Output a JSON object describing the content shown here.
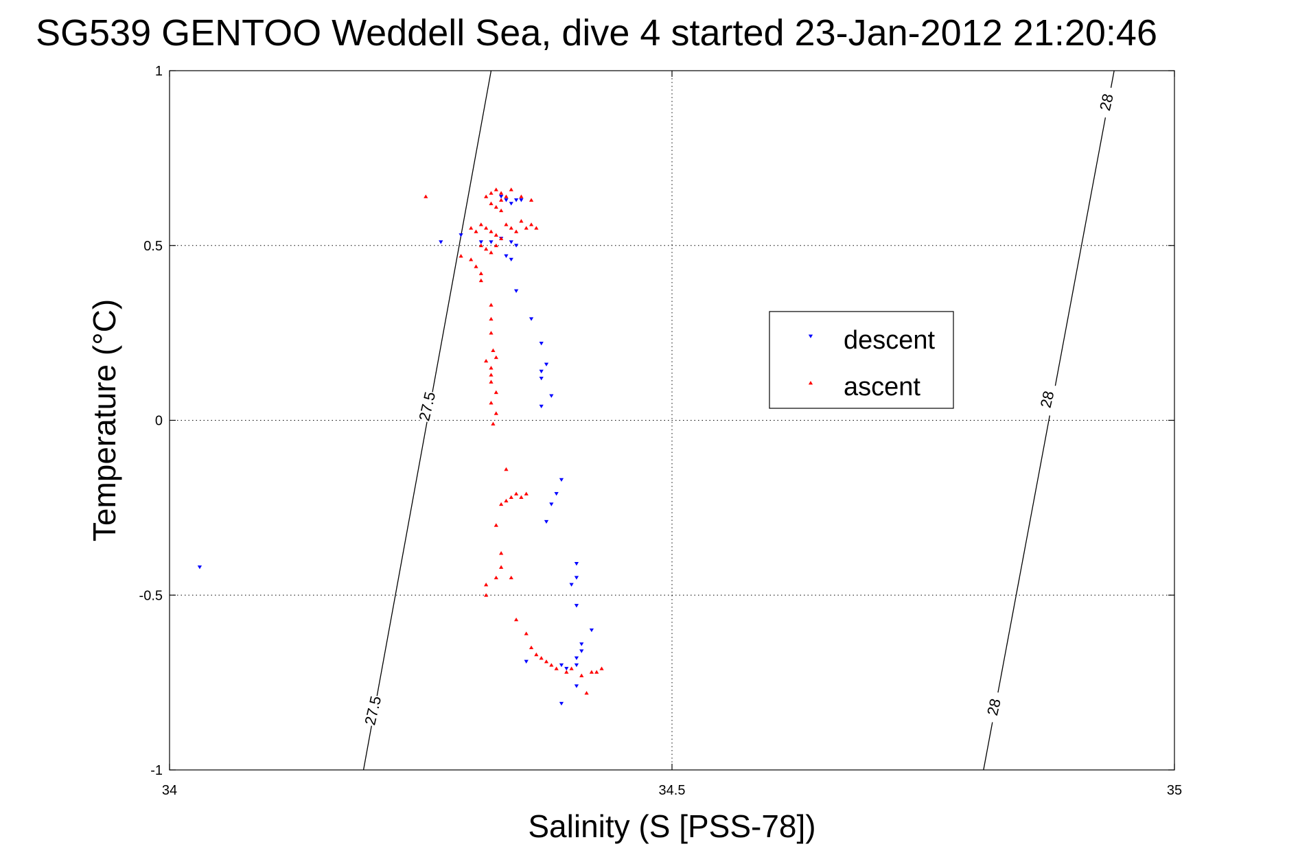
{
  "chart_data": {
    "type": "scatter",
    "title": "SG539 GENTOO Weddell Sea, dive 4 started 23-Jan-2012 21:20:46",
    "xlabel": "Salinity (S [PSS-78])",
    "ylabel": "Temperature (°C)",
    "xlim": [
      34,
      35
    ],
    "ylim": [
      -1,
      1
    ],
    "xticks": [
      34,
      34.5,
      35
    ],
    "yticks": [
      -1,
      -0.5,
      0,
      0.5,
      1
    ],
    "xtick_labels": [
      "34",
      "34.5",
      "35"
    ],
    "ytick_labels": [
      "-1",
      "-0.5",
      "0",
      "0.5",
      "1"
    ],
    "grid": true,
    "legend_position": "center-right",
    "isopycnals": [
      {
        "label": "27.5",
        "points": [
          [
            34.193,
            -1.0
          ],
          [
            34.32,
            1.0
          ]
        ]
      },
      {
        "label": "28",
        "points": [
          [
            34.81,
            -1.0
          ],
          [
            34.94,
            1.0
          ]
        ]
      }
    ],
    "contour_labels": [
      {
        "text": "27.5",
        "x": 34.202,
        "y": -0.83
      },
      {
        "text": "27.5",
        "x": 34.256,
        "y": 0.04
      },
      {
        "text": "28",
        "x": 34.82,
        "y": -0.82
      },
      {
        "text": "28",
        "x": 34.873,
        "y": 0.06
      },
      {
        "text": "28",
        "x": 34.932,
        "y": 0.91
      }
    ],
    "series": [
      {
        "name": "descent",
        "color": "#0000ff",
        "marker": "triangle-down",
        "points": [
          [
            34.03,
            -0.42
          ],
          [
            34.27,
            0.51
          ],
          [
            34.29,
            0.53
          ],
          [
            34.31,
            0.51
          ],
          [
            34.32,
            0.51
          ],
          [
            34.33,
            0.52
          ],
          [
            34.34,
            0.51
          ],
          [
            34.345,
            0.5
          ],
          [
            34.335,
            0.47
          ],
          [
            34.34,
            0.46
          ],
          [
            34.33,
            0.64
          ],
          [
            34.335,
            0.63
          ],
          [
            34.34,
            0.62
          ],
          [
            34.345,
            0.63
          ],
          [
            34.35,
            0.63
          ],
          [
            34.345,
            0.37
          ],
          [
            34.36,
            0.29
          ],
          [
            34.37,
            0.22
          ],
          [
            34.37,
            0.14
          ],
          [
            34.375,
            0.16
          ],
          [
            34.37,
            0.12
          ],
          [
            34.38,
            0.07
          ],
          [
            34.37,
            0.04
          ],
          [
            34.39,
            -0.17
          ],
          [
            34.385,
            -0.21
          ],
          [
            34.38,
            -0.24
          ],
          [
            34.375,
            -0.29
          ],
          [
            34.405,
            -0.41
          ],
          [
            34.405,
            -0.45
          ],
          [
            34.4,
            -0.47
          ],
          [
            34.405,
            -0.53
          ],
          [
            34.42,
            -0.6
          ],
          [
            34.41,
            -0.64
          ],
          [
            34.41,
            -0.66
          ],
          [
            34.405,
            -0.68
          ],
          [
            34.405,
            -0.7
          ],
          [
            34.395,
            -0.71
          ],
          [
            34.405,
            -0.76
          ],
          [
            34.39,
            -0.81
          ],
          [
            34.355,
            -0.69
          ],
          [
            34.39,
            -0.7
          ]
        ]
      },
      {
        "name": "ascent",
        "color": "#ff0000",
        "marker": "triangle-up",
        "points": [
          [
            34.255,
            0.64
          ],
          [
            34.315,
            0.64
          ],
          [
            34.32,
            0.65
          ],
          [
            34.325,
            0.66
          ],
          [
            34.33,
            0.65
          ],
          [
            34.335,
            0.64
          ],
          [
            34.34,
            0.66
          ],
          [
            34.33,
            0.63
          ],
          [
            34.32,
            0.62
          ],
          [
            34.325,
            0.61
          ],
          [
            34.33,
            0.6
          ],
          [
            34.36,
            0.63
          ],
          [
            34.35,
            0.64
          ],
          [
            34.3,
            0.55
          ],
          [
            34.305,
            0.54
          ],
          [
            34.31,
            0.56
          ],
          [
            34.315,
            0.55
          ],
          [
            34.32,
            0.54
          ],
          [
            34.325,
            0.53
          ],
          [
            34.33,
            0.52
          ],
          [
            34.335,
            0.56
          ],
          [
            34.34,
            0.55
          ],
          [
            34.345,
            0.54
          ],
          [
            34.35,
            0.57
          ],
          [
            34.355,
            0.55
          ],
          [
            34.36,
            0.56
          ],
          [
            34.365,
            0.55
          ],
          [
            34.31,
            0.5
          ],
          [
            34.315,
            0.49
          ],
          [
            34.32,
            0.48
          ],
          [
            34.325,
            0.5
          ],
          [
            34.29,
            0.47
          ],
          [
            34.3,
            0.46
          ],
          [
            34.305,
            0.44
          ],
          [
            34.31,
            0.42
          ],
          [
            34.31,
            0.4
          ],
          [
            34.32,
            0.33
          ],
          [
            34.32,
            0.29
          ],
          [
            34.32,
            0.25
          ],
          [
            34.322,
            0.2
          ],
          [
            34.315,
            0.17
          ],
          [
            34.32,
            0.15
          ],
          [
            34.325,
            0.18
          ],
          [
            34.32,
            0.13
          ],
          [
            34.32,
            0.11
          ],
          [
            34.325,
            0.08
          ],
          [
            34.32,
            0.05
          ],
          [
            34.325,
            0.02
          ],
          [
            34.322,
            -0.01
          ],
          [
            34.335,
            -0.14
          ],
          [
            34.33,
            -0.24
          ],
          [
            34.335,
            -0.23
          ],
          [
            34.34,
            -0.22
          ],
          [
            34.345,
            -0.21
          ],
          [
            34.35,
            -0.22
          ],
          [
            34.355,
            -0.21
          ],
          [
            34.325,
            -0.3
          ],
          [
            34.33,
            -0.38
          ],
          [
            34.33,
            -0.42
          ],
          [
            34.325,
            -0.45
          ],
          [
            34.34,
            -0.45
          ],
          [
            34.315,
            -0.47
          ],
          [
            34.315,
            -0.5
          ],
          [
            34.345,
            -0.57
          ],
          [
            34.355,
            -0.61
          ],
          [
            34.36,
            -0.65
          ],
          [
            34.365,
            -0.67
          ],
          [
            34.37,
            -0.68
          ],
          [
            34.375,
            -0.69
          ],
          [
            34.38,
            -0.7
          ],
          [
            34.385,
            -0.71
          ],
          [
            34.395,
            -0.72
          ],
          [
            34.4,
            -0.71
          ],
          [
            34.41,
            -0.73
          ],
          [
            34.42,
            -0.72
          ],
          [
            34.425,
            -0.72
          ],
          [
            34.43,
            -0.71
          ],
          [
            34.415,
            -0.78
          ]
        ]
      }
    ]
  }
}
